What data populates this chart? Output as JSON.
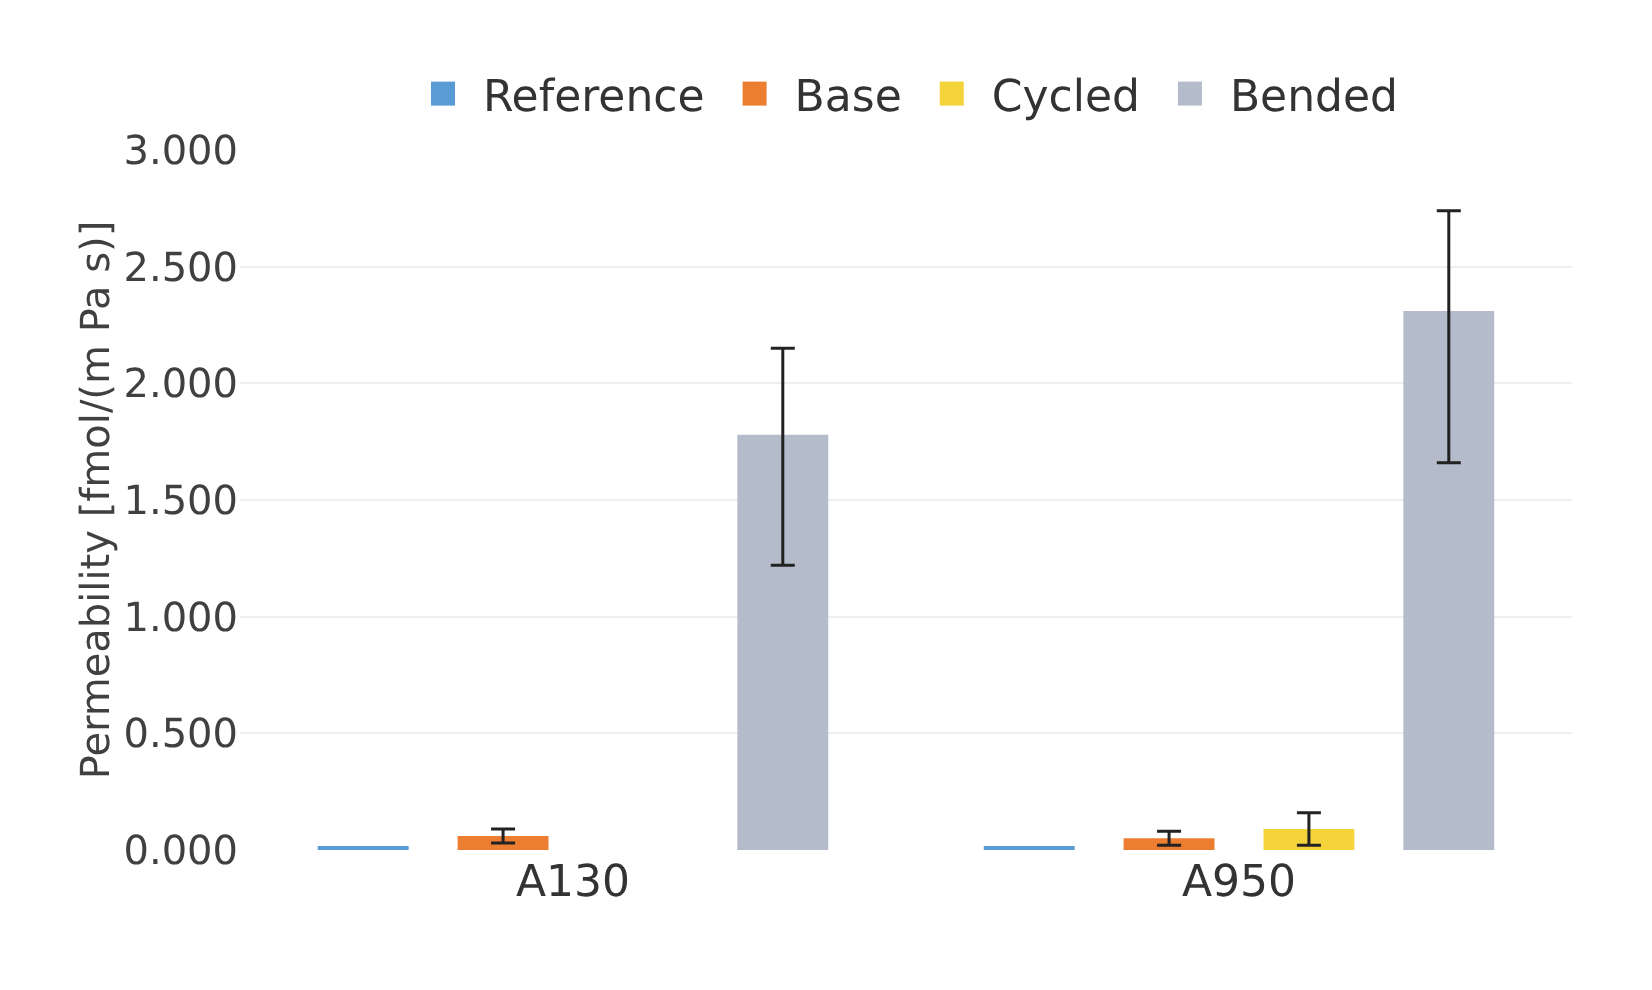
{
  "chart_data": {
    "type": "bar",
    "ylabel": "Permeability [fmol/(m Pa s)]",
    "categories": [
      "A130",
      "A950"
    ],
    "series": [
      {
        "name": "Reference",
        "color": "#5b9bd5",
        "values": [
          0.01,
          0.01
        ]
      },
      {
        "name": "Base",
        "color": "#ed7d31",
        "values": [
          0.06,
          0.05
        ],
        "errors": [
          0.03,
          0.03
        ]
      },
      {
        "name": "Cycled",
        "color": "#f5d33a",
        "values": [
          null,
          0.09
        ],
        "errors": [
          null,
          0.07
        ]
      },
      {
        "name": "Bended",
        "color": "#b4bccc",
        "values": [
          1.78,
          2.31
        ],
        "errors": [
          [
            1.22,
            2.15
          ],
          [
            1.66,
            2.74
          ]
        ]
      }
    ],
    "ylim": [
      0,
      3
    ],
    "yticks": [
      {
        "value": 0,
        "label": "0.000"
      },
      {
        "value": 0.5,
        "label": "0.500"
      },
      {
        "value": 1,
        "label": "1.000"
      },
      {
        "value": 1.5,
        "label": "1.500"
      },
      {
        "value": 2,
        "label": "2.000"
      },
      {
        "value": 2.5,
        "label": "2.500"
      },
      {
        "value": 3,
        "label": "3.000"
      }
    ],
    "grid": "y",
    "legend": "top"
  }
}
